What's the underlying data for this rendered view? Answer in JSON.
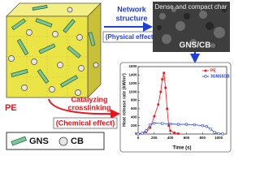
{
  "diagram": {
    "matrix_label": "PE",
    "top_arrow": {
      "lines": [
        "Network",
        "structure"
      ],
      "effect": "(Physical effect)"
    },
    "bottom_arrow": {
      "lines": [
        "Catalyzing",
        "crosslinking"
      ],
      "effect": "(Chemical effect)"
    },
    "image": {
      "caption": "Dense and compact char",
      "overlay": "GNS/CB"
    },
    "legend": [
      "GNS",
      "CB"
    ]
  },
  "chart_data": {
    "type": "line",
    "xlabel": "Time (s)",
    "ylabel": "Heat release rate (kW/m²)",
    "x": [
      0,
      50,
      100,
      150,
      200,
      250,
      280,
      300,
      320,
      340,
      360,
      380,
      400,
      450,
      500
    ],
    "xlim": [
      0,
      1100
    ],
    "xticks": [
      0,
      200,
      400,
      600,
      800,
      1000
    ],
    "ylim": [
      0,
      1600
    ],
    "yticks": [
      0,
      200,
      400,
      600,
      800,
      1000,
      1200,
      1400,
      1600
    ],
    "legend": "upper right",
    "series": [
      {
        "name": "PE",
        "color": "#e8141b",
        "marker": "square",
        "x": [
          0,
          50,
          100,
          150,
          200,
          250,
          280,
          300,
          320,
          340,
          360,
          380,
          400,
          450,
          500
        ],
        "values": [
          0,
          20,
          50,
          150,
          420,
          700,
          1000,
          1300,
          1450,
          1100,
          600,
          200,
          80,
          30,
          10
        ]
      },
      {
        "name": "3GNS5CB",
        "color": "#1f3fd6",
        "marker": "circle",
        "x": [
          0,
          50,
          100,
          150,
          200,
          300,
          400,
          500,
          600,
          700,
          800,
          850,
          900,
          950,
          1000,
          1050
        ],
        "values": [
          0,
          20,
          80,
          220,
          260,
          250,
          240,
          230,
          230,
          220,
          200,
          180,
          120,
          40,
          10,
          5
        ]
      }
    ]
  }
}
